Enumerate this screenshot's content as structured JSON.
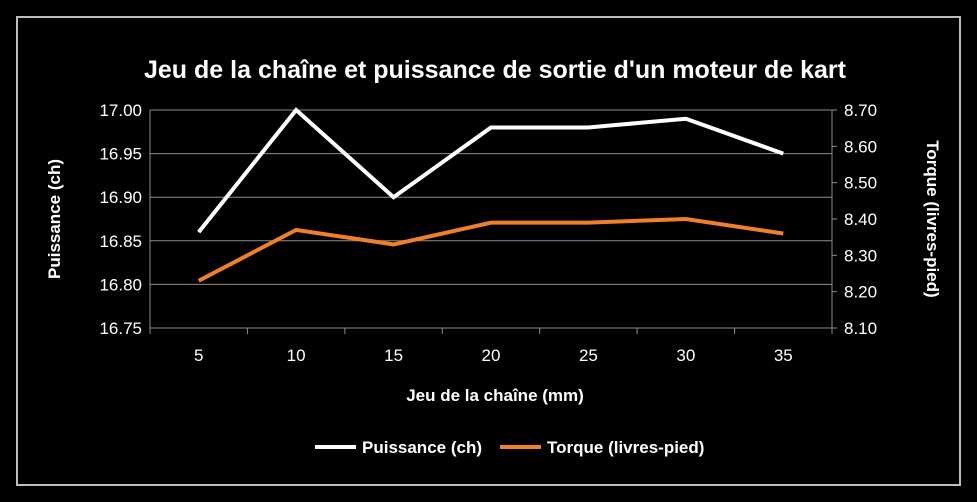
{
  "chart_data": {
    "type": "line",
    "title": "Jeu de la chaîne et puissance de sortie d'un moteur de kart",
    "xlabel": "Jeu de la chaîne (mm)",
    "ylabel": "Puissance (ch)",
    "y2label": "Torque (livres-pied)",
    "categories": [
      "5",
      "10",
      "15",
      "20",
      "25",
      "30",
      "35"
    ],
    "ylim": [
      16.75,
      17.0
    ],
    "y2lim": [
      8.1,
      8.7
    ],
    "yticks": [
      "16.75",
      "16.80",
      "16.85",
      "16.90",
      "16.95",
      "17.00"
    ],
    "y2ticks": [
      "8.10",
      "8.20",
      "8.30",
      "8.40",
      "8.50",
      "8.60",
      "8.70"
    ],
    "grid": true,
    "legend_position": "bottom",
    "series": [
      {
        "name": "Puissance (ch)",
        "axis": "left",
        "color": "#ffffff",
        "values": [
          16.86,
          17.0,
          16.9,
          16.98,
          16.98,
          16.99,
          16.95
        ]
      },
      {
        "name": "Torque (livres-pied)",
        "axis": "right",
        "color": "#f07f2a",
        "values": [
          8.23,
          8.37,
          8.33,
          8.39,
          8.39,
          8.4,
          8.36
        ]
      }
    ]
  }
}
